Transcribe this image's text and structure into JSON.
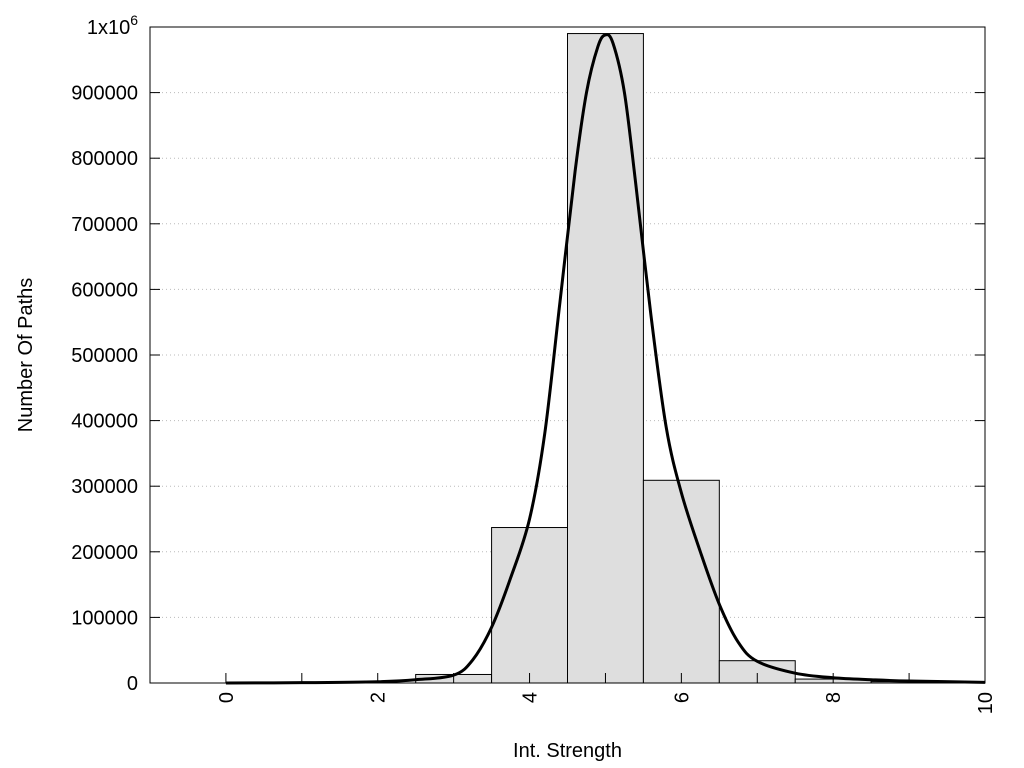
{
  "chart_data": {
    "type": "bar",
    "xlabel": "Int. Strength",
    "ylabel": "Number Of Paths",
    "xlim": [
      -1,
      10
    ],
    "ylim": [
      0,
      1000000
    ],
    "x_ticks": [
      0,
      2,
      4,
      6,
      8,
      10
    ],
    "y_ticks": [
      0,
      100000,
      200000,
      300000,
      400000,
      500000,
      600000,
      700000,
      800000,
      900000,
      1000000
    ],
    "y_tick_labels": [
      "0",
      "100000",
      "200000",
      "300000",
      "400000",
      "500000",
      "600000",
      "700000",
      "800000",
      "900000",
      "1x10"
    ],
    "y_top_exponent": "6",
    "grid": "horizontal-dotted",
    "bar_color": "#dedede",
    "bins": [
      {
        "x": 0,
        "value": 0
      },
      {
        "x": 1,
        "value": 0
      },
      {
        "x": 2,
        "value": 0
      },
      {
        "x": 3,
        "value": 13000
      },
      {
        "x": 4,
        "value": 237000
      },
      {
        "x": 5,
        "value": 990000
      },
      {
        "x": 6,
        "value": 309000
      },
      {
        "x": 7,
        "value": 34000
      },
      {
        "x": 8,
        "value": 6000
      },
      {
        "x": 9,
        "value": 2000
      }
    ],
    "curve": {
      "type": "line",
      "color": "#000000",
      "x": [
        0,
        1,
        2,
        2.5,
        3,
        3.25,
        3.5,
        3.75,
        4,
        4.2,
        4.4,
        4.6,
        4.75,
        4.9,
        5,
        5.1,
        5.25,
        5.4,
        5.6,
        5.8,
        6,
        6.25,
        6.5,
        6.75,
        7,
        7.5,
        8,
        8.5,
        9,
        10
      ],
      "y": [
        0,
        500,
        2000,
        5000,
        12000,
        35000,
        85000,
        160000,
        250000,
        380000,
        580000,
        780000,
        900000,
        970000,
        988000,
        975000,
        900000,
        760000,
        560000,
        390000,
        290000,
        200000,
        120000,
        62000,
        33000,
        15000,
        8000,
        5000,
        3000,
        1000
      ]
    }
  }
}
